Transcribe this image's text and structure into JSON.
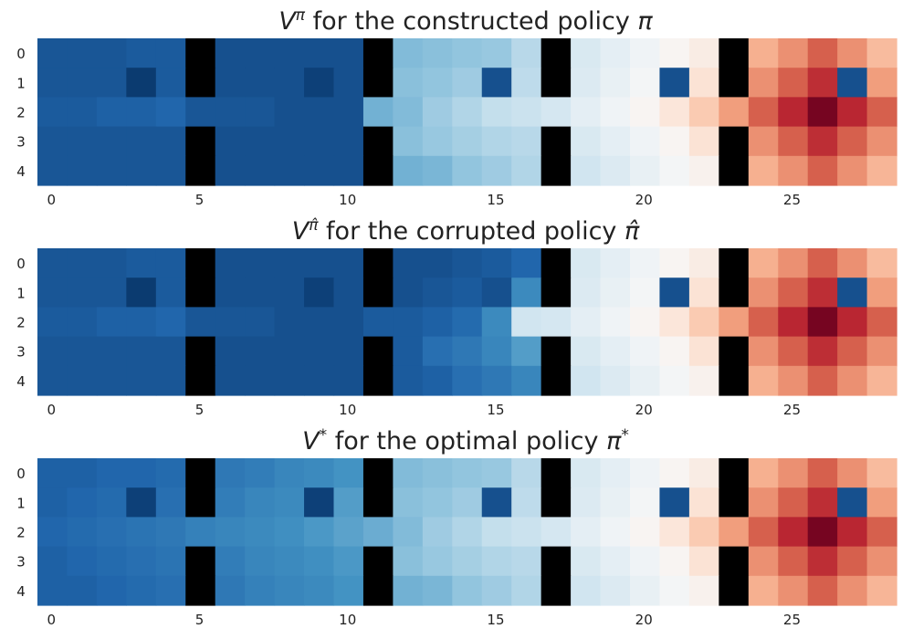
{
  "chart_data": [
    {
      "type": "heatmap",
      "title_main": "V",
      "title_sup": "π",
      "title_rest": " for the constructed policy ",
      "title_symbol": "π",
      "title_symbol_sup": "",
      "x_ticks": [
        "0",
        "5",
        "10",
        "15",
        "20",
        "25"
      ],
      "y_ticks": [
        "0",
        "1",
        "2",
        "3",
        "4"
      ],
      "n_rows": 5,
      "n_cols": 29,
      "wall_columns": [
        5,
        11,
        17,
        23
      ],
      "wall_open_row": 2,
      "colormap": "RdBu_r",
      "color_range": [
        0,
        1
      ],
      "wall_color": "#000000",
      "highlight_cells": [
        [
          1,
          3
        ],
        [
          1,
          15
        ],
        [
          1,
          21
        ],
        [
          1,
          27
        ]
      ],
      "values": [
        [
          0.07,
          0.07,
          0.07,
          0.08,
          0.08,
          null,
          0.06,
          0.06,
          0.06,
          0.06,
          0.06,
          null,
          0.28,
          0.29,
          0.3,
          0.31,
          0.36,
          null,
          0.42,
          0.45,
          0.48,
          0.51,
          0.54,
          null,
          0.68,
          0.73,
          0.8,
          0.73,
          0.66
        ],
        [
          0.07,
          0.07,
          0.07,
          0.02,
          0.08,
          null,
          0.06,
          0.06,
          0.06,
          0.03,
          0.06,
          null,
          0.29,
          0.3,
          0.32,
          0.06,
          0.37,
          null,
          0.43,
          0.46,
          0.49,
          0.06,
          0.57,
          null,
          0.73,
          0.8,
          0.87,
          0.06,
          0.71
        ],
        [
          0.08,
          0.08,
          0.09,
          0.09,
          0.1,
          0.07,
          0.07,
          0.07,
          0.06,
          0.06,
          0.06,
          0.26,
          0.28,
          0.32,
          0.35,
          0.38,
          0.39,
          0.41,
          0.45,
          0.48,
          0.51,
          0.56,
          0.63,
          0.71,
          0.8,
          0.88,
          0.98,
          0.88,
          0.8
        ],
        [
          0.07,
          0.07,
          0.07,
          0.07,
          0.07,
          null,
          0.06,
          0.06,
          0.06,
          0.06,
          0.06,
          null,
          0.29,
          0.31,
          0.33,
          0.35,
          0.36,
          null,
          0.42,
          0.45,
          0.48,
          0.51,
          0.57,
          null,
          0.73,
          0.8,
          0.87,
          0.8,
          0.73
        ],
        [
          0.07,
          0.07,
          0.07,
          0.07,
          0.07,
          null,
          0.06,
          0.06,
          0.06,
          0.06,
          0.06,
          null,
          0.26,
          0.27,
          0.3,
          0.32,
          0.35,
          null,
          0.4,
          0.43,
          0.46,
          0.49,
          0.52,
          null,
          0.68,
          0.73,
          0.8,
          0.73,
          0.67
        ]
      ]
    },
    {
      "type": "heatmap",
      "title_main": "V",
      "title_sup": "π̂",
      "title_rest": " for the corrupted policy ",
      "title_symbol": "π̂",
      "title_symbol_sup": "",
      "x_ticks": [
        "0",
        "5",
        "10",
        "15",
        "20",
        "25"
      ],
      "y_ticks": [
        "0",
        "1",
        "2",
        "3",
        "4"
      ],
      "n_rows": 5,
      "n_cols": 29,
      "wall_columns": [
        5,
        11,
        17,
        23
      ],
      "wall_open_row": 2,
      "colormap": "RdBu_r",
      "color_range": [
        0,
        1
      ],
      "wall_color": "#000000",
      "highlight_cells": [
        [
          1,
          3
        ],
        [
          1,
          15
        ],
        [
          1,
          21
        ],
        [
          1,
          27
        ]
      ],
      "values": [
        [
          0.07,
          0.07,
          0.07,
          0.08,
          0.08,
          null,
          0.06,
          0.06,
          0.06,
          0.06,
          0.06,
          null,
          0.06,
          0.06,
          0.07,
          0.08,
          0.1,
          null,
          0.42,
          0.45,
          0.48,
          0.51,
          0.54,
          null,
          0.68,
          0.73,
          0.8,
          0.73,
          0.66
        ],
        [
          0.07,
          0.07,
          0.07,
          0.02,
          0.08,
          null,
          0.06,
          0.06,
          0.06,
          0.03,
          0.06,
          null,
          0.06,
          0.07,
          0.08,
          0.06,
          0.18,
          null,
          0.43,
          0.46,
          0.49,
          0.06,
          0.57,
          null,
          0.73,
          0.8,
          0.87,
          0.06,
          0.71
        ],
        [
          0.08,
          0.08,
          0.09,
          0.09,
          0.1,
          0.07,
          0.07,
          0.07,
          0.06,
          0.06,
          0.06,
          0.08,
          0.08,
          0.09,
          0.11,
          0.18,
          0.4,
          0.41,
          0.45,
          0.48,
          0.51,
          0.56,
          0.63,
          0.71,
          0.8,
          0.88,
          0.98,
          0.88,
          0.8
        ],
        [
          0.07,
          0.07,
          0.07,
          0.07,
          0.07,
          null,
          0.06,
          0.06,
          0.06,
          0.06,
          0.06,
          null,
          0.08,
          0.12,
          0.14,
          0.17,
          0.22,
          null,
          0.42,
          0.45,
          0.48,
          0.51,
          0.57,
          null,
          0.73,
          0.8,
          0.87,
          0.8,
          0.73
        ],
        [
          0.07,
          0.07,
          0.07,
          0.07,
          0.07,
          null,
          0.06,
          0.06,
          0.06,
          0.06,
          0.06,
          null,
          0.08,
          0.09,
          0.12,
          0.14,
          0.17,
          null,
          0.4,
          0.43,
          0.46,
          0.49,
          0.52,
          null,
          0.68,
          0.73,
          0.8,
          0.73,
          0.67
        ]
      ]
    },
    {
      "type": "heatmap",
      "title_main": "V",
      "title_sup": "*",
      "title_rest": " for the optimal policy ",
      "title_symbol": "π",
      "title_symbol_sup": "*",
      "x_ticks": [
        "0",
        "5",
        "10",
        "15",
        "20",
        "25"
      ],
      "y_ticks": [
        "0",
        "1",
        "2",
        "3",
        "4"
      ],
      "n_rows": 5,
      "n_cols": 29,
      "wall_columns": [
        5,
        11,
        17,
        23
      ],
      "wall_open_row": 2,
      "colormap": "RdBu_r",
      "color_range": [
        0,
        1
      ],
      "wall_color": "#000000",
      "highlight_cells": [
        [
          1,
          3
        ],
        [
          1,
          15
        ],
        [
          1,
          21
        ],
        [
          1,
          27
        ]
      ],
      "values": [
        [
          0.09,
          0.09,
          0.1,
          0.1,
          0.11,
          null,
          0.14,
          0.15,
          0.17,
          0.18,
          0.2,
          null,
          0.28,
          0.29,
          0.3,
          0.31,
          0.36,
          null,
          0.42,
          0.45,
          0.48,
          0.51,
          0.54,
          null,
          0.68,
          0.73,
          0.8,
          0.73,
          0.66
        ],
        [
          0.09,
          0.1,
          0.11,
          0.03,
          0.12,
          null,
          0.15,
          0.17,
          0.18,
          0.03,
          0.22,
          null,
          0.29,
          0.3,
          0.32,
          0.06,
          0.37,
          null,
          0.43,
          0.46,
          0.49,
          0.06,
          0.57,
          null,
          0.73,
          0.8,
          0.87,
          0.06,
          0.71
        ],
        [
          0.1,
          0.11,
          0.12,
          0.13,
          0.14,
          0.16,
          0.17,
          0.18,
          0.19,
          0.21,
          0.23,
          0.25,
          0.28,
          0.32,
          0.35,
          0.38,
          0.39,
          0.41,
          0.45,
          0.48,
          0.51,
          0.56,
          0.63,
          0.71,
          0.8,
          0.88,
          0.98,
          0.88,
          0.8
        ],
        [
          0.09,
          0.1,
          0.11,
          0.12,
          0.13,
          null,
          0.15,
          0.17,
          0.18,
          0.19,
          0.21,
          null,
          0.29,
          0.31,
          0.33,
          0.35,
          0.36,
          null,
          0.42,
          0.45,
          0.48,
          0.51,
          0.57,
          null,
          0.73,
          0.8,
          0.87,
          0.8,
          0.73
        ],
        [
          0.09,
          0.09,
          0.1,
          0.11,
          0.12,
          null,
          0.14,
          0.16,
          0.17,
          0.18,
          0.2,
          null,
          0.26,
          0.27,
          0.3,
          0.32,
          0.35,
          null,
          0.4,
          0.43,
          0.46,
          0.49,
          0.52,
          null,
          0.68,
          0.73,
          0.8,
          0.73,
          0.67
        ]
      ]
    }
  ]
}
